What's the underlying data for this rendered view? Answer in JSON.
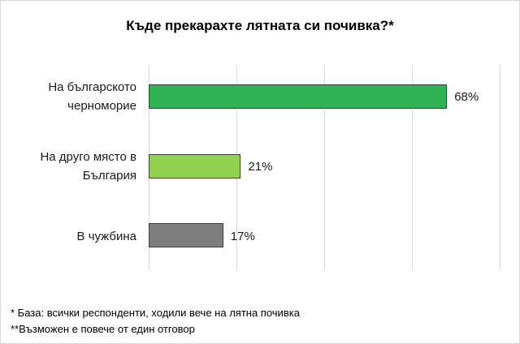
{
  "chart_data": {
    "type": "bar",
    "orientation": "horizontal",
    "title": "Къде прекарахте лятната си почивка?*",
    "categories": [
      "На българското черноморие",
      "На друго място в България",
      "В чужбина"
    ],
    "category_lines": [
      [
        "На българското",
        "черноморие"
      ],
      [
        "На друго място в",
        "България"
      ],
      [
        "В чужбина"
      ]
    ],
    "values": [
      68,
      21,
      17
    ],
    "value_labels": [
      "68%",
      "21%",
      "17%"
    ],
    "colors": [
      "#2fb254",
      "#92d050",
      "#7f7f7f"
    ],
    "xlabel": "",
    "ylabel": "",
    "xlim": [
      0,
      80
    ],
    "gridlines": [
      0,
      20,
      40,
      60,
      80
    ],
    "grid": true,
    "legend": null
  },
  "footnotes": [
    "* База: всички респонденти, ходили вече на лятна почивка",
    "**Възможен е повече от един отговор"
  ]
}
